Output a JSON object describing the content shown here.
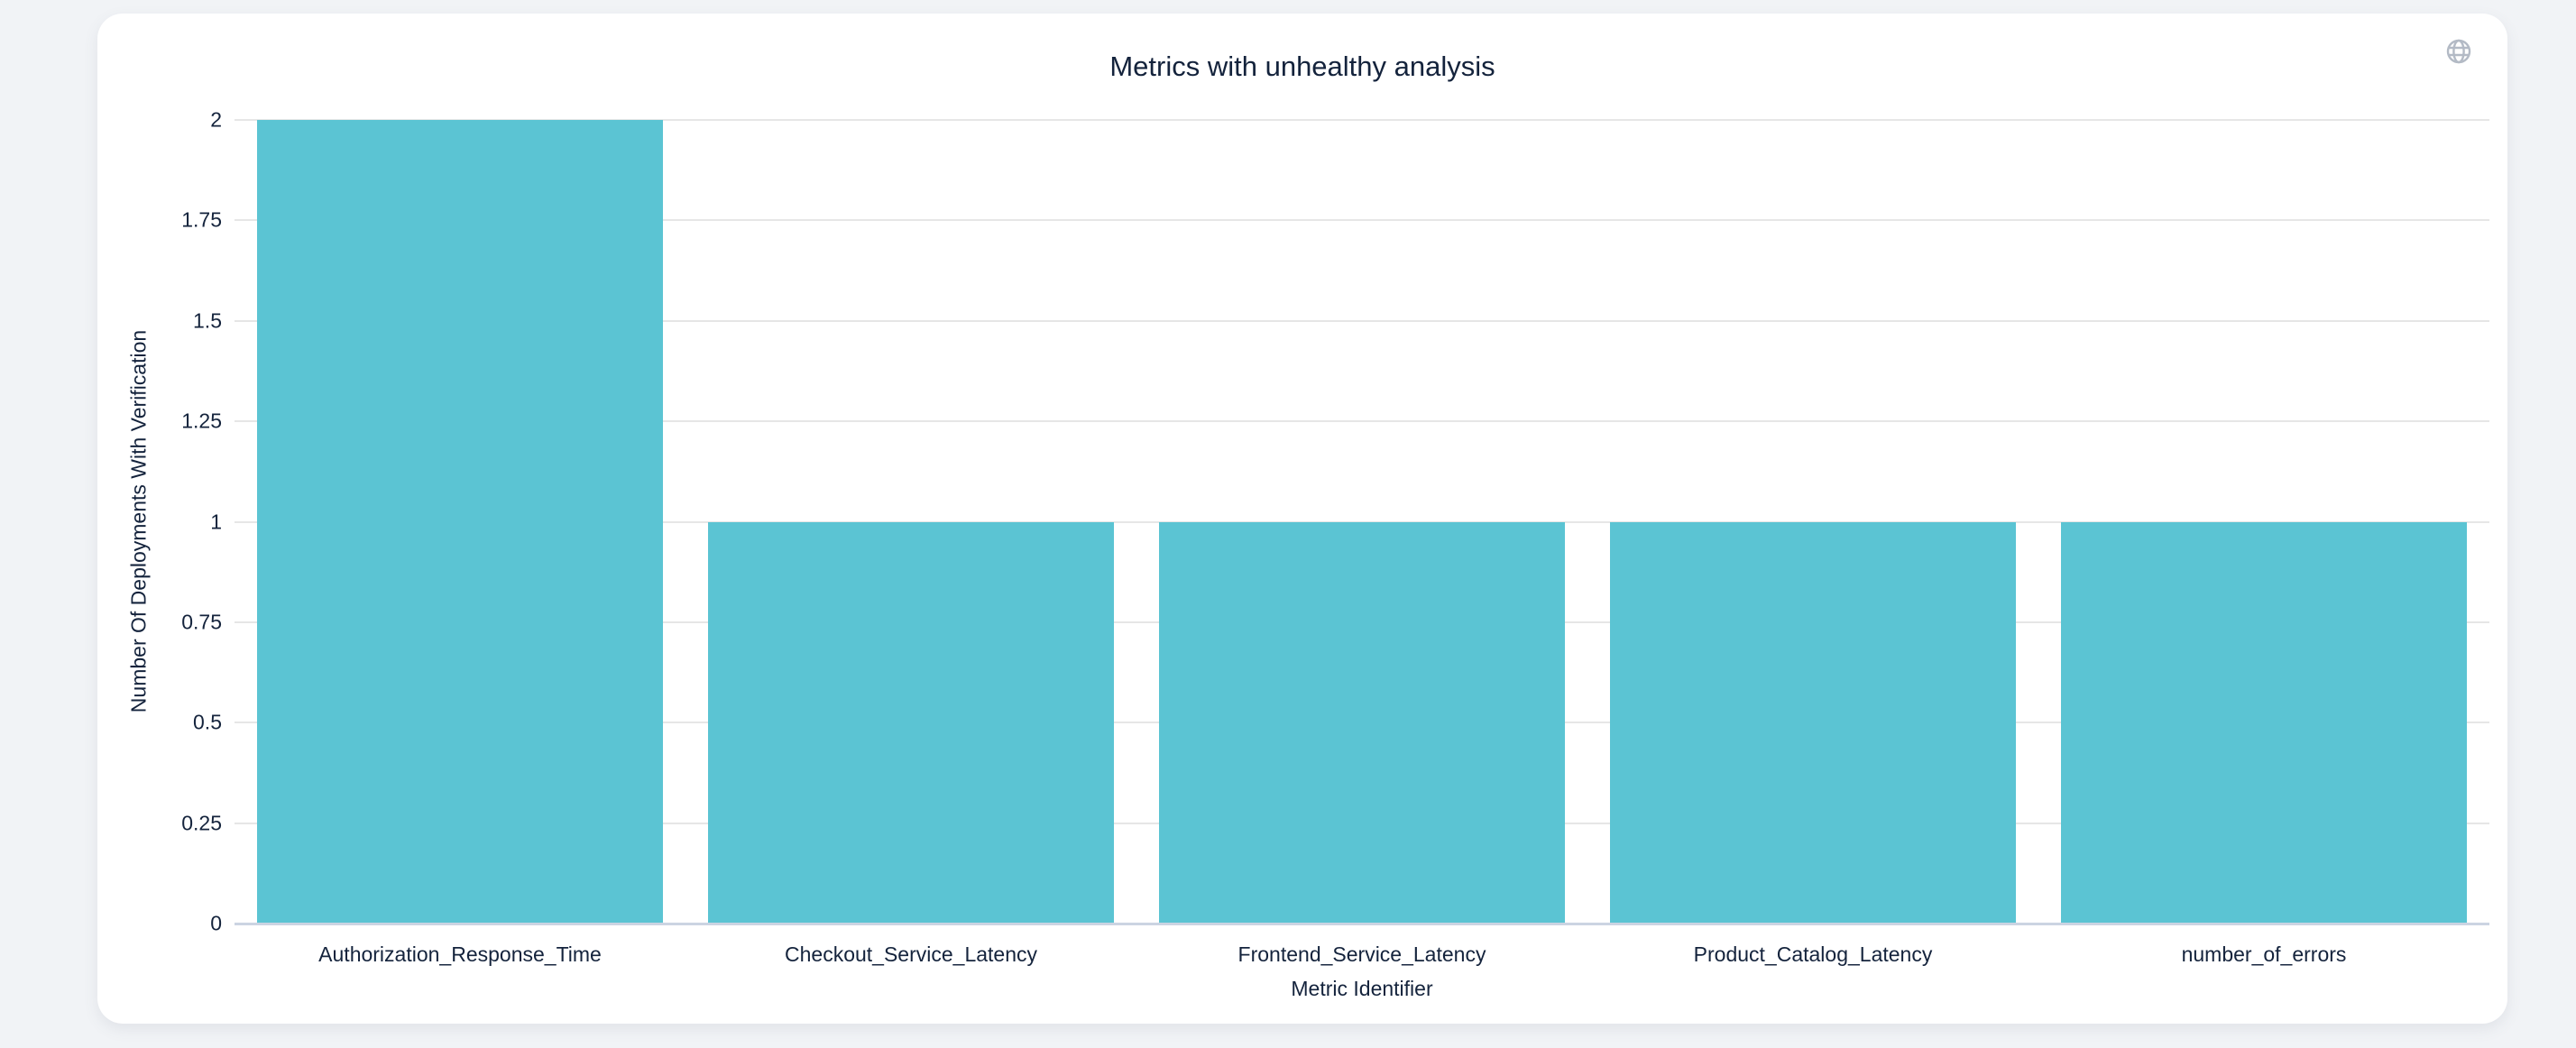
{
  "chart_data": {
    "type": "bar",
    "title": "Metrics with unhealthy analysis",
    "xlabel": "Metric Identifier",
    "ylabel": "Number Of Deployments With Verification",
    "categories": [
      "Authorization_Response_Time",
      "Checkout_Service_Latency",
      "Frontend_Service_Latency",
      "Product_Catalog_Latency",
      "number_of_errors"
    ],
    "values": [
      2,
      1,
      1,
      1,
      1
    ],
    "ylim": [
      0,
      2
    ],
    "yticks": [
      "0",
      "0.25",
      "0.5",
      "0.75",
      "1",
      "1.25",
      "1.5",
      "1.75",
      "2"
    ],
    "grid": true,
    "legend": false,
    "bargap": 0.1
  },
  "icons": {
    "globe": "globe-icon"
  },
  "colors": {
    "page_bg": "#F1F3F6",
    "card_bg": "#FFFFFF",
    "text": "#14233C",
    "bar": "#5BC4D3",
    "grid": "#E6E6E6",
    "axis_line": "#CBD4E2",
    "icon": "#B3BAC5"
  }
}
